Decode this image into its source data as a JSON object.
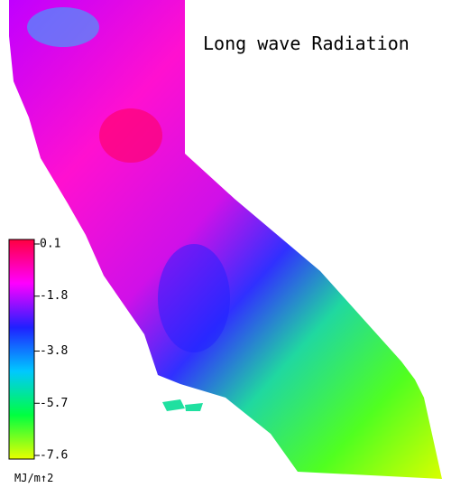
{
  "title": "Long wave Radiation",
  "colorbar": {
    "lim": [
      -7.6,
      0.1
    ],
    "ticks": [
      0.1,
      -1.8,
      -3.8,
      -5.7,
      -7.6
    ],
    "unit": "MJ/m↑2",
    "colors": [
      "#ff0040",
      "#ff00ff",
      "#2020ff",
      "#00c8ff",
      "#00ff40",
      "#e8ff00"
    ]
  }
}
